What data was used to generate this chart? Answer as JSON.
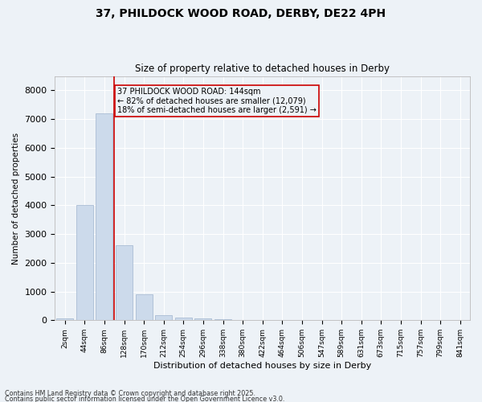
{
  "title1": "37, PHILDOCK WOOD ROAD, DERBY, DE22 4PH",
  "title2": "Size of property relative to detached houses in Derby",
  "xlabel": "Distribution of detached houses by size in Derby",
  "ylabel": "Number of detached properties",
  "bar_categories": [
    "2sqm",
    "44sqm",
    "86sqm",
    "128sqm",
    "170sqm",
    "212sqm",
    "254sqm",
    "296sqm",
    "338sqm",
    "380sqm",
    "422sqm",
    "464sqm",
    "506sqm",
    "547sqm",
    "589sqm",
    "631sqm",
    "673sqm",
    "715sqm",
    "757sqm",
    "799sqm",
    "841sqm"
  ],
  "bar_values": [
    55,
    4000,
    7200,
    2600,
    900,
    170,
    100,
    60,
    30,
    20,
    8,
    3,
    2,
    1,
    1,
    0,
    0,
    0,
    0,
    0,
    0
  ],
  "bar_color": "#ccdaeb",
  "bar_edge_color": "#aabdd4",
  "vline_color": "#cc0000",
  "annotation_text": "37 PHILDOCK WOOD ROAD: 144sqm\n← 82% of detached houses are smaller (12,079)\n18% of semi-detached houses are larger (2,591) →",
  "annotation_box_edgecolor": "#cc0000",
  "ylim": [
    0,
    8500
  ],
  "yticks": [
    0,
    1000,
    2000,
    3000,
    4000,
    5000,
    6000,
    7000,
    8000
  ],
  "footer1": "Contains HM Land Registry data © Crown copyright and database right 2025.",
  "footer2": "Contains public sector information licensed under the Open Government Licence v3.0.",
  "bg_color": "#edf2f7",
  "plot_bg_color": "#edf2f7",
  "grid_color": "#ffffff"
}
